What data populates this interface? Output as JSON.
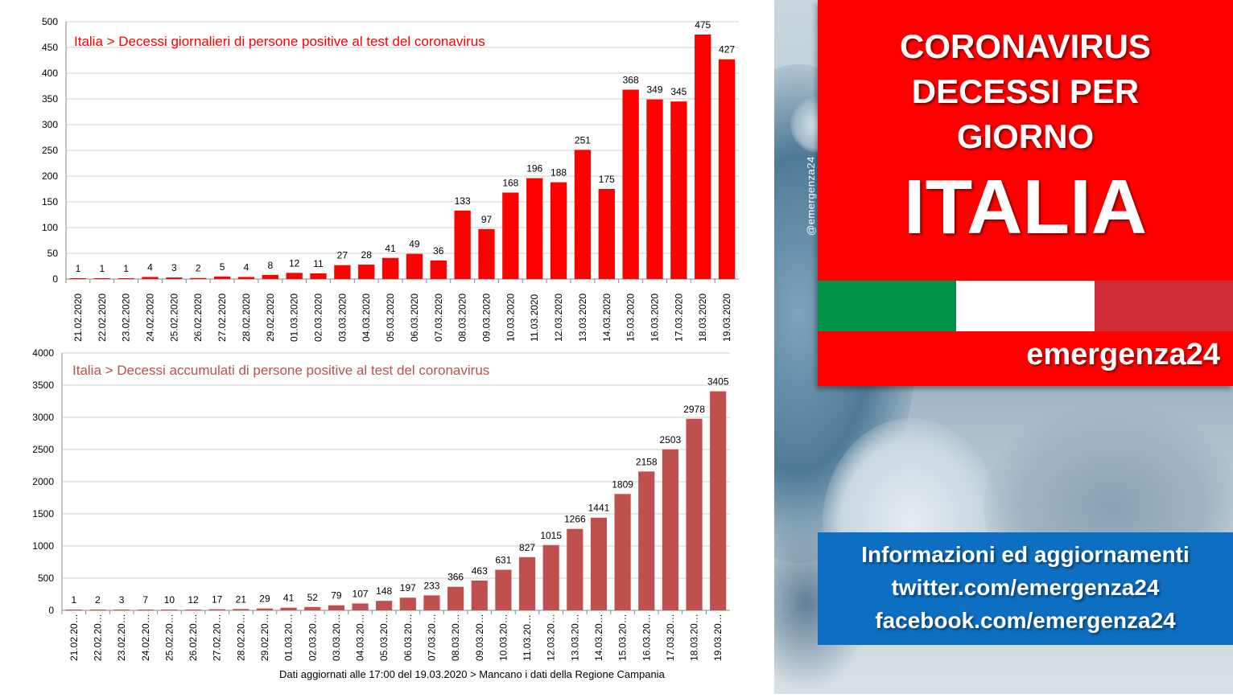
{
  "chart_data": [
    {
      "type": "bar",
      "title": "Italia > Decessi giornalieri di persone positive al test del coronavirus",
      "color": "#ff0000",
      "ylim": [
        0,
        500
      ],
      "yticks": [
        "0",
        "50",
        "100",
        "150",
        "200",
        "250",
        "300",
        "350",
        "400",
        "450",
        "500"
      ],
      "grid": true,
      "categories": [
        "21.02.2020",
        "22.02.2020",
        "23.02.2020",
        "24.02.2020",
        "25.02.2020",
        "26.02.2020",
        "27.02.2020",
        "28.02.2020",
        "29.02.2020",
        "01.03.2020",
        "02.03.2020",
        "03.03.2020",
        "04.03.2020",
        "05.03.2020",
        "06.03.2020",
        "07.03.2020",
        "08.03.2020",
        "09.03.2020",
        "10.03.2020",
        "11.03.2020",
        "12.03.2020",
        "13.03.2020",
        "14.03.2020",
        "15.03.2020",
        "16.03.2020",
        "17.03.2020",
        "18.03.2020",
        "19.03.2020"
      ],
      "values": [
        1,
        1,
        1,
        4,
        3,
        2,
        5,
        4,
        8,
        12,
        11,
        27,
        28,
        41,
        49,
        36,
        133,
        97,
        168,
        196,
        188,
        251,
        175,
        368,
        349,
        345,
        475,
        427
      ]
    },
    {
      "type": "bar",
      "title": "Italia > Decessi accumulati di persone positive al test del coronavirus",
      "color": "#c0504d",
      "ylim": [
        0,
        4000
      ],
      "yticks": [
        "0",
        "500",
        "1000",
        "1500",
        "2000",
        "2500",
        "3000",
        "3500",
        "4000"
      ],
      "grid": true,
      "categories": [
        "21.02.20…",
        "22.02.20…",
        "23.02.20…",
        "24.02.20…",
        "25.02.20…",
        "26.02.20…",
        "27.02.20…",
        "28.02.20…",
        "29.02.20…",
        "01.03.20…",
        "02.03.20…",
        "03.03.20…",
        "04.03.20…",
        "05.03.20…",
        "06.03.20…",
        "07.03.20…",
        "08.03.20…",
        "09.03.20…",
        "10.03.20…",
        "11.03.20…",
        "12.03.20…",
        "13.03.20…",
        "14.03.20…",
        "15.03.20…",
        "16.03.20…",
        "17.03.20…",
        "18.03.20…",
        "19.03.20…"
      ],
      "values": [
        1,
        2,
        3,
        7,
        10,
        12,
        17,
        21,
        29,
        41,
        52,
        79,
        107,
        148,
        197,
        233,
        366,
        463,
        631,
        827,
        1015,
        1266,
        1441,
        1809,
        2158,
        2503,
        2978,
        3405
      ]
    }
  ],
  "note": "Dati aggiornati alle  17:00 del 19.03.2020 > Mancano i dati della Regione Campania",
  "panel": {
    "watermark": "@emergenza24",
    "title_lines": [
      "CORONAVIRUS",
      "DECESSI PER",
      "GIORNO"
    ],
    "country": "ITALIA",
    "flag_colors": [
      "#009246",
      "#ffffff",
      "#ce2b37"
    ],
    "brand": "emergenza24",
    "info_lines": [
      "Informazioni ed aggiornamenti",
      "twitter.com/emergenza24",
      "facebook.com/emergenza24"
    ],
    "accent_red": "#fe0000",
    "accent_blue": "#0d6fc2"
  }
}
